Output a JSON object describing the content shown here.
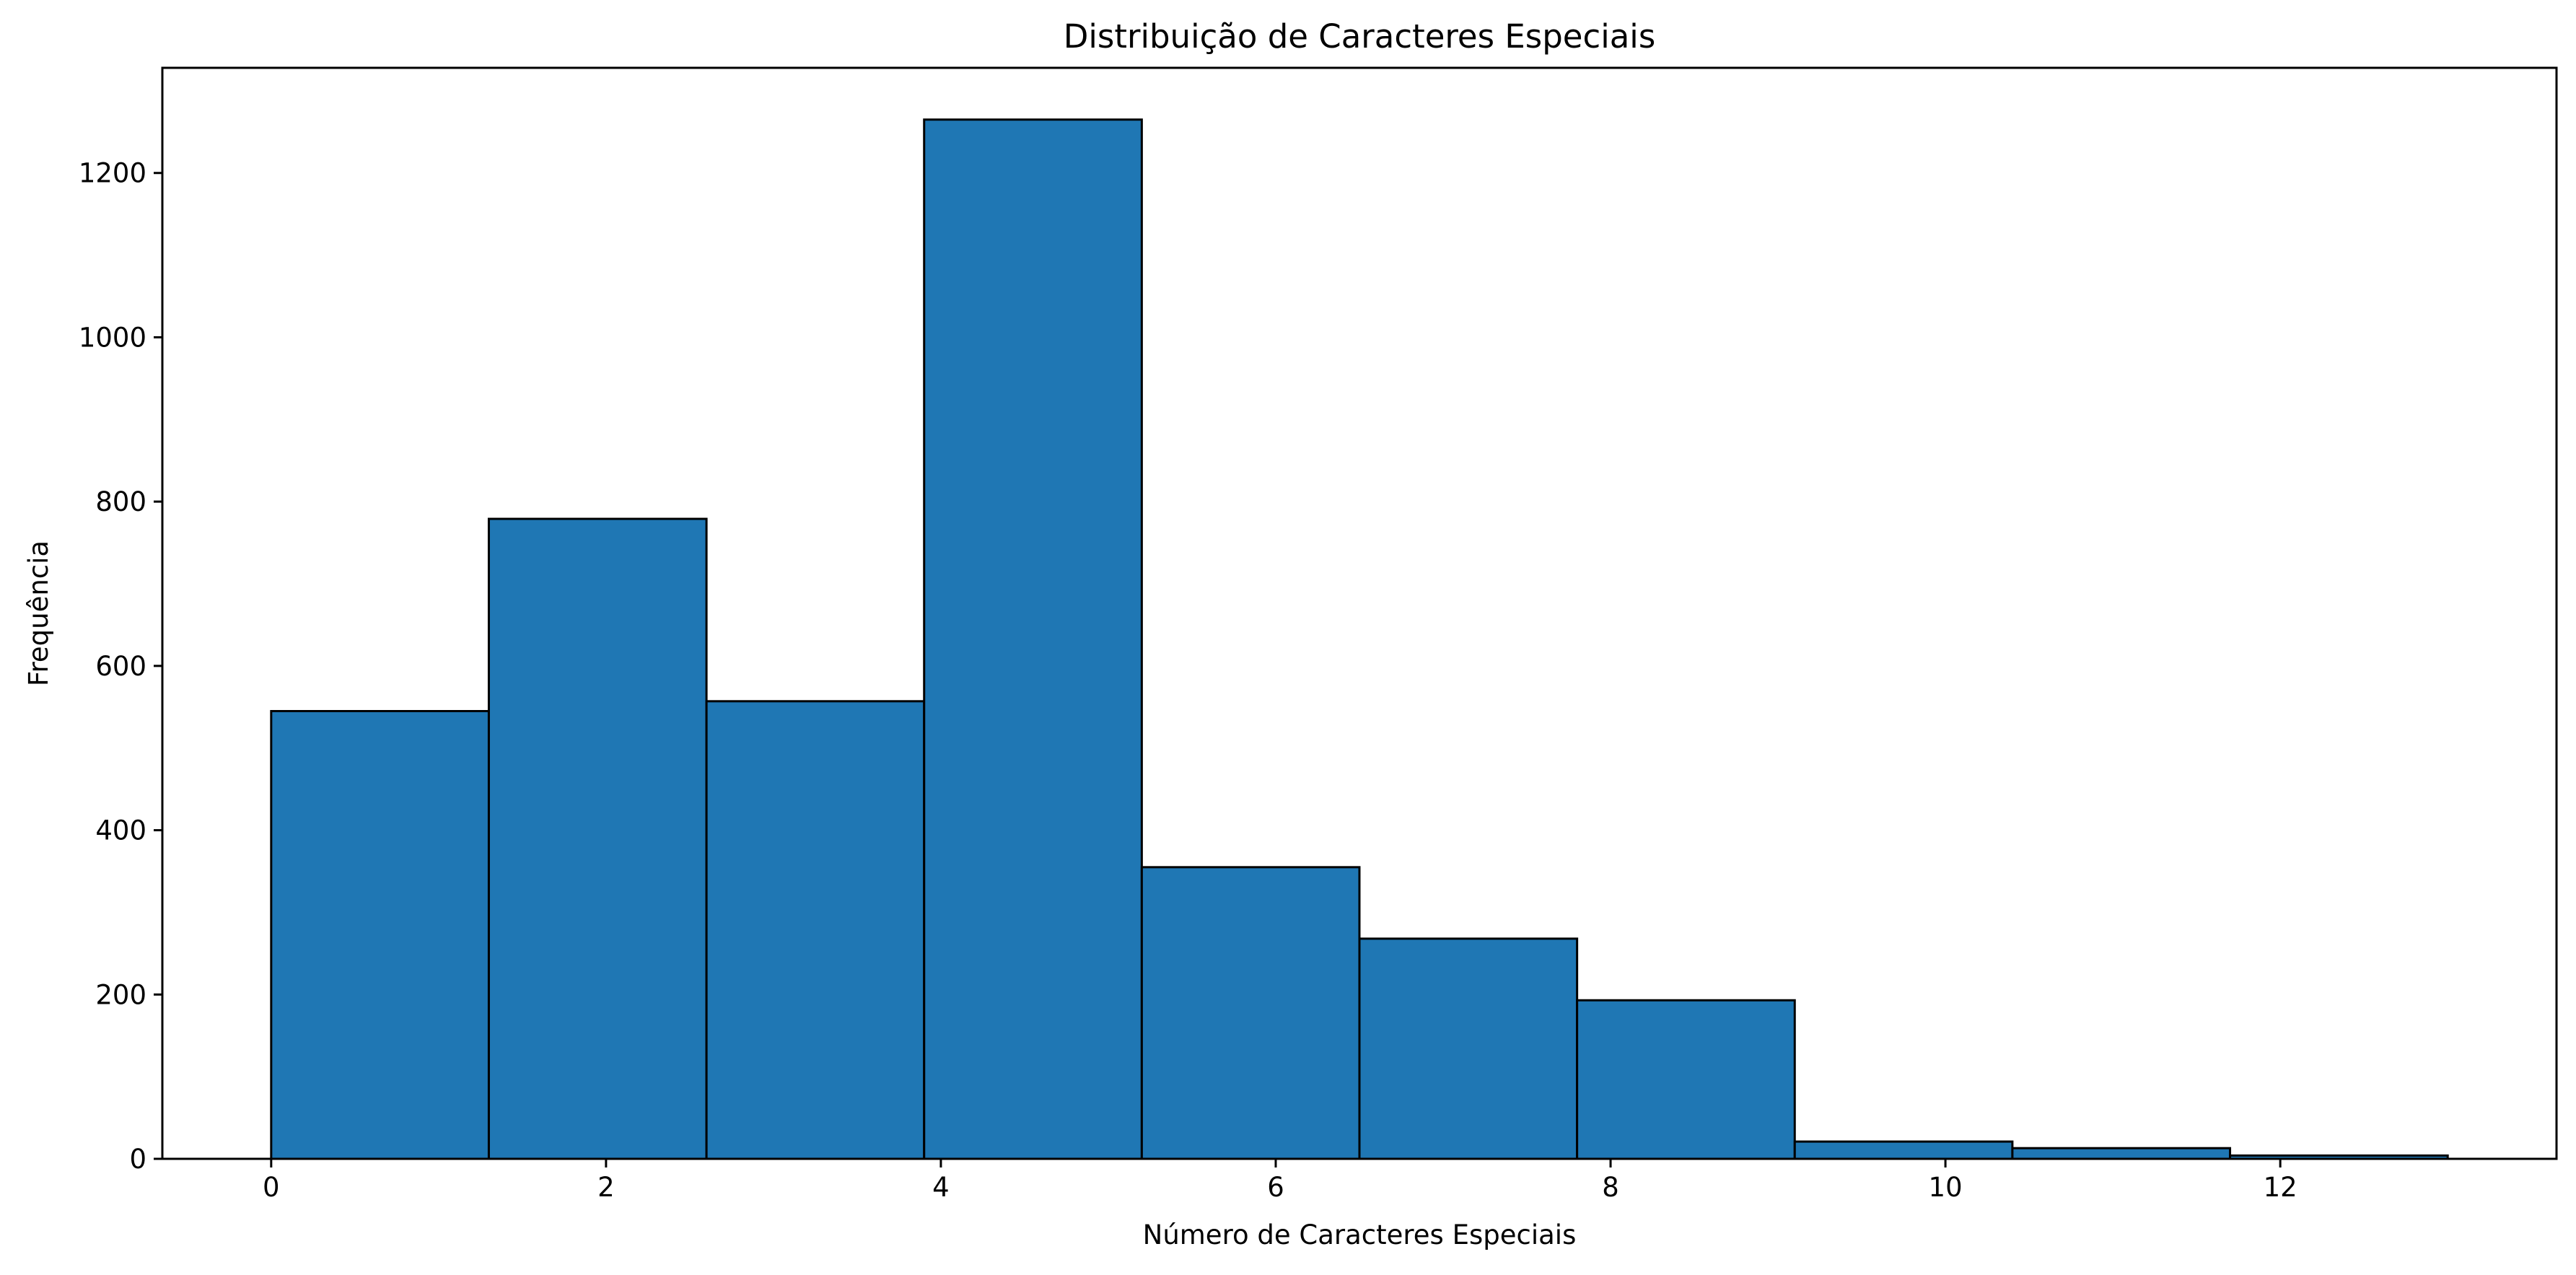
{
  "chart_data": {
    "type": "bar",
    "title": "Distribuição de Caracteres Especiais",
    "xlabel": "Número de Caracteres Especiais",
    "ylabel": "Frequência",
    "bin_edges": [
      0,
      1.3,
      2.6,
      3.9,
      5.2,
      6.5,
      7.8,
      9.1,
      10.4,
      11.7,
      13
    ],
    "values": [
      545,
      779,
      557,
      1265,
      355,
      268,
      193,
      21,
      13,
      4
    ],
    "xlim": [
      -0.65,
      13.65
    ],
    "ylim": [
      0,
      1328
    ],
    "x_ticks": [
      0,
      2,
      4,
      6,
      8,
      10,
      12
    ],
    "y_ticks": [
      0,
      200,
      400,
      600,
      800,
      1000,
      1200
    ],
    "bar_color": "#1f77b4",
    "edge_color": "#000000",
    "grid": false,
    "legend": "none"
  }
}
